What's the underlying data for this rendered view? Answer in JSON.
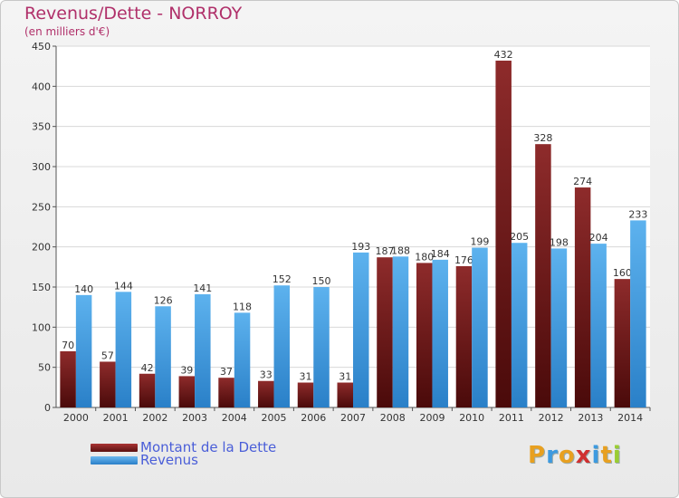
{
  "chart_data": {
    "type": "bar",
    "title": "Revenus/Dette - NORROY",
    "subtitle": "(en milliers d'€)",
    "categories": [
      "2000",
      "2001",
      "2002",
      "2003",
      "2004",
      "2005",
      "2006",
      "2007",
      "2008",
      "2009",
      "2010",
      "2011",
      "2012",
      "2013",
      "2014"
    ],
    "series": [
      {
        "name": "Montant de la Dette",
        "color": "#7a1f1f",
        "values": [
          70,
          57,
          42,
          39,
          37,
          33,
          31,
          31,
          187,
          180,
          176,
          432,
          328,
          274,
          160
        ]
      },
      {
        "name": "Revenus",
        "color": "#3d9ae0",
        "values": [
          140,
          144,
          126,
          141,
          118,
          152,
          150,
          193,
          188,
          184,
          199,
          205,
          198,
          204,
          233
        ]
      }
    ],
    "ylim": [
      0,
      450
    ],
    "yticks": [
      0,
      50,
      100,
      150,
      200,
      250,
      300,
      350,
      400,
      450
    ],
    "grid": true,
    "legend_position": "bottom-left"
  },
  "branding": {
    "logo_text": "Proxiti",
    "logo_colors": [
      "#e8a020",
      "#3d9ae0",
      "#e8a020",
      "#d03030",
      "#3d9ae0",
      "#e8a020",
      "#9acd32"
    ]
  }
}
